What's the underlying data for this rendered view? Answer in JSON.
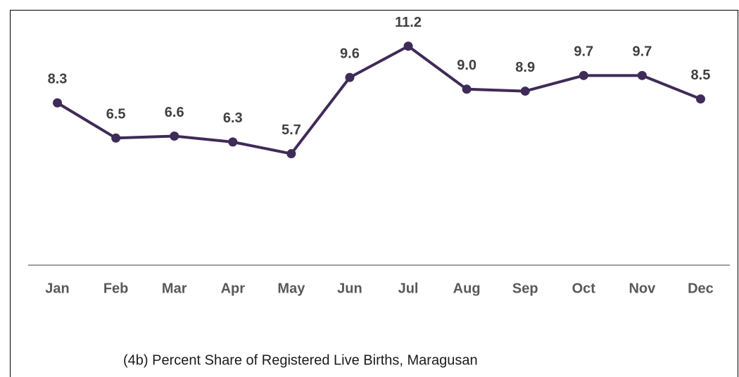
{
  "chart_data": {
    "type": "line",
    "title": "(4b) Percent Share of Registered Live Births, Maragusan",
    "categories": [
      "Jan",
      "Feb",
      "Mar",
      "Apr",
      "May",
      "Jun",
      "Jul",
      "Aug",
      "Sep",
      "Oct",
      "Nov",
      "Dec"
    ],
    "series": [
      {
        "name": "Percent Share",
        "color": "#3f2b57",
        "values": [
          8.3,
          6.5,
          6.6,
          6.3,
          5.7,
          9.6,
          11.2,
          9.0,
          8.9,
          9.7,
          9.7,
          8.5
        ],
        "value_labels": [
          "8.3",
          "6.5",
          "6.6",
          "6.3",
          "5.7",
          "9.6",
          "11.2",
          "9.0",
          "8.9",
          "9.7",
          "9.7",
          "8.5"
        ]
      }
    ],
    "ylim": [
      0,
      12
    ]
  }
}
